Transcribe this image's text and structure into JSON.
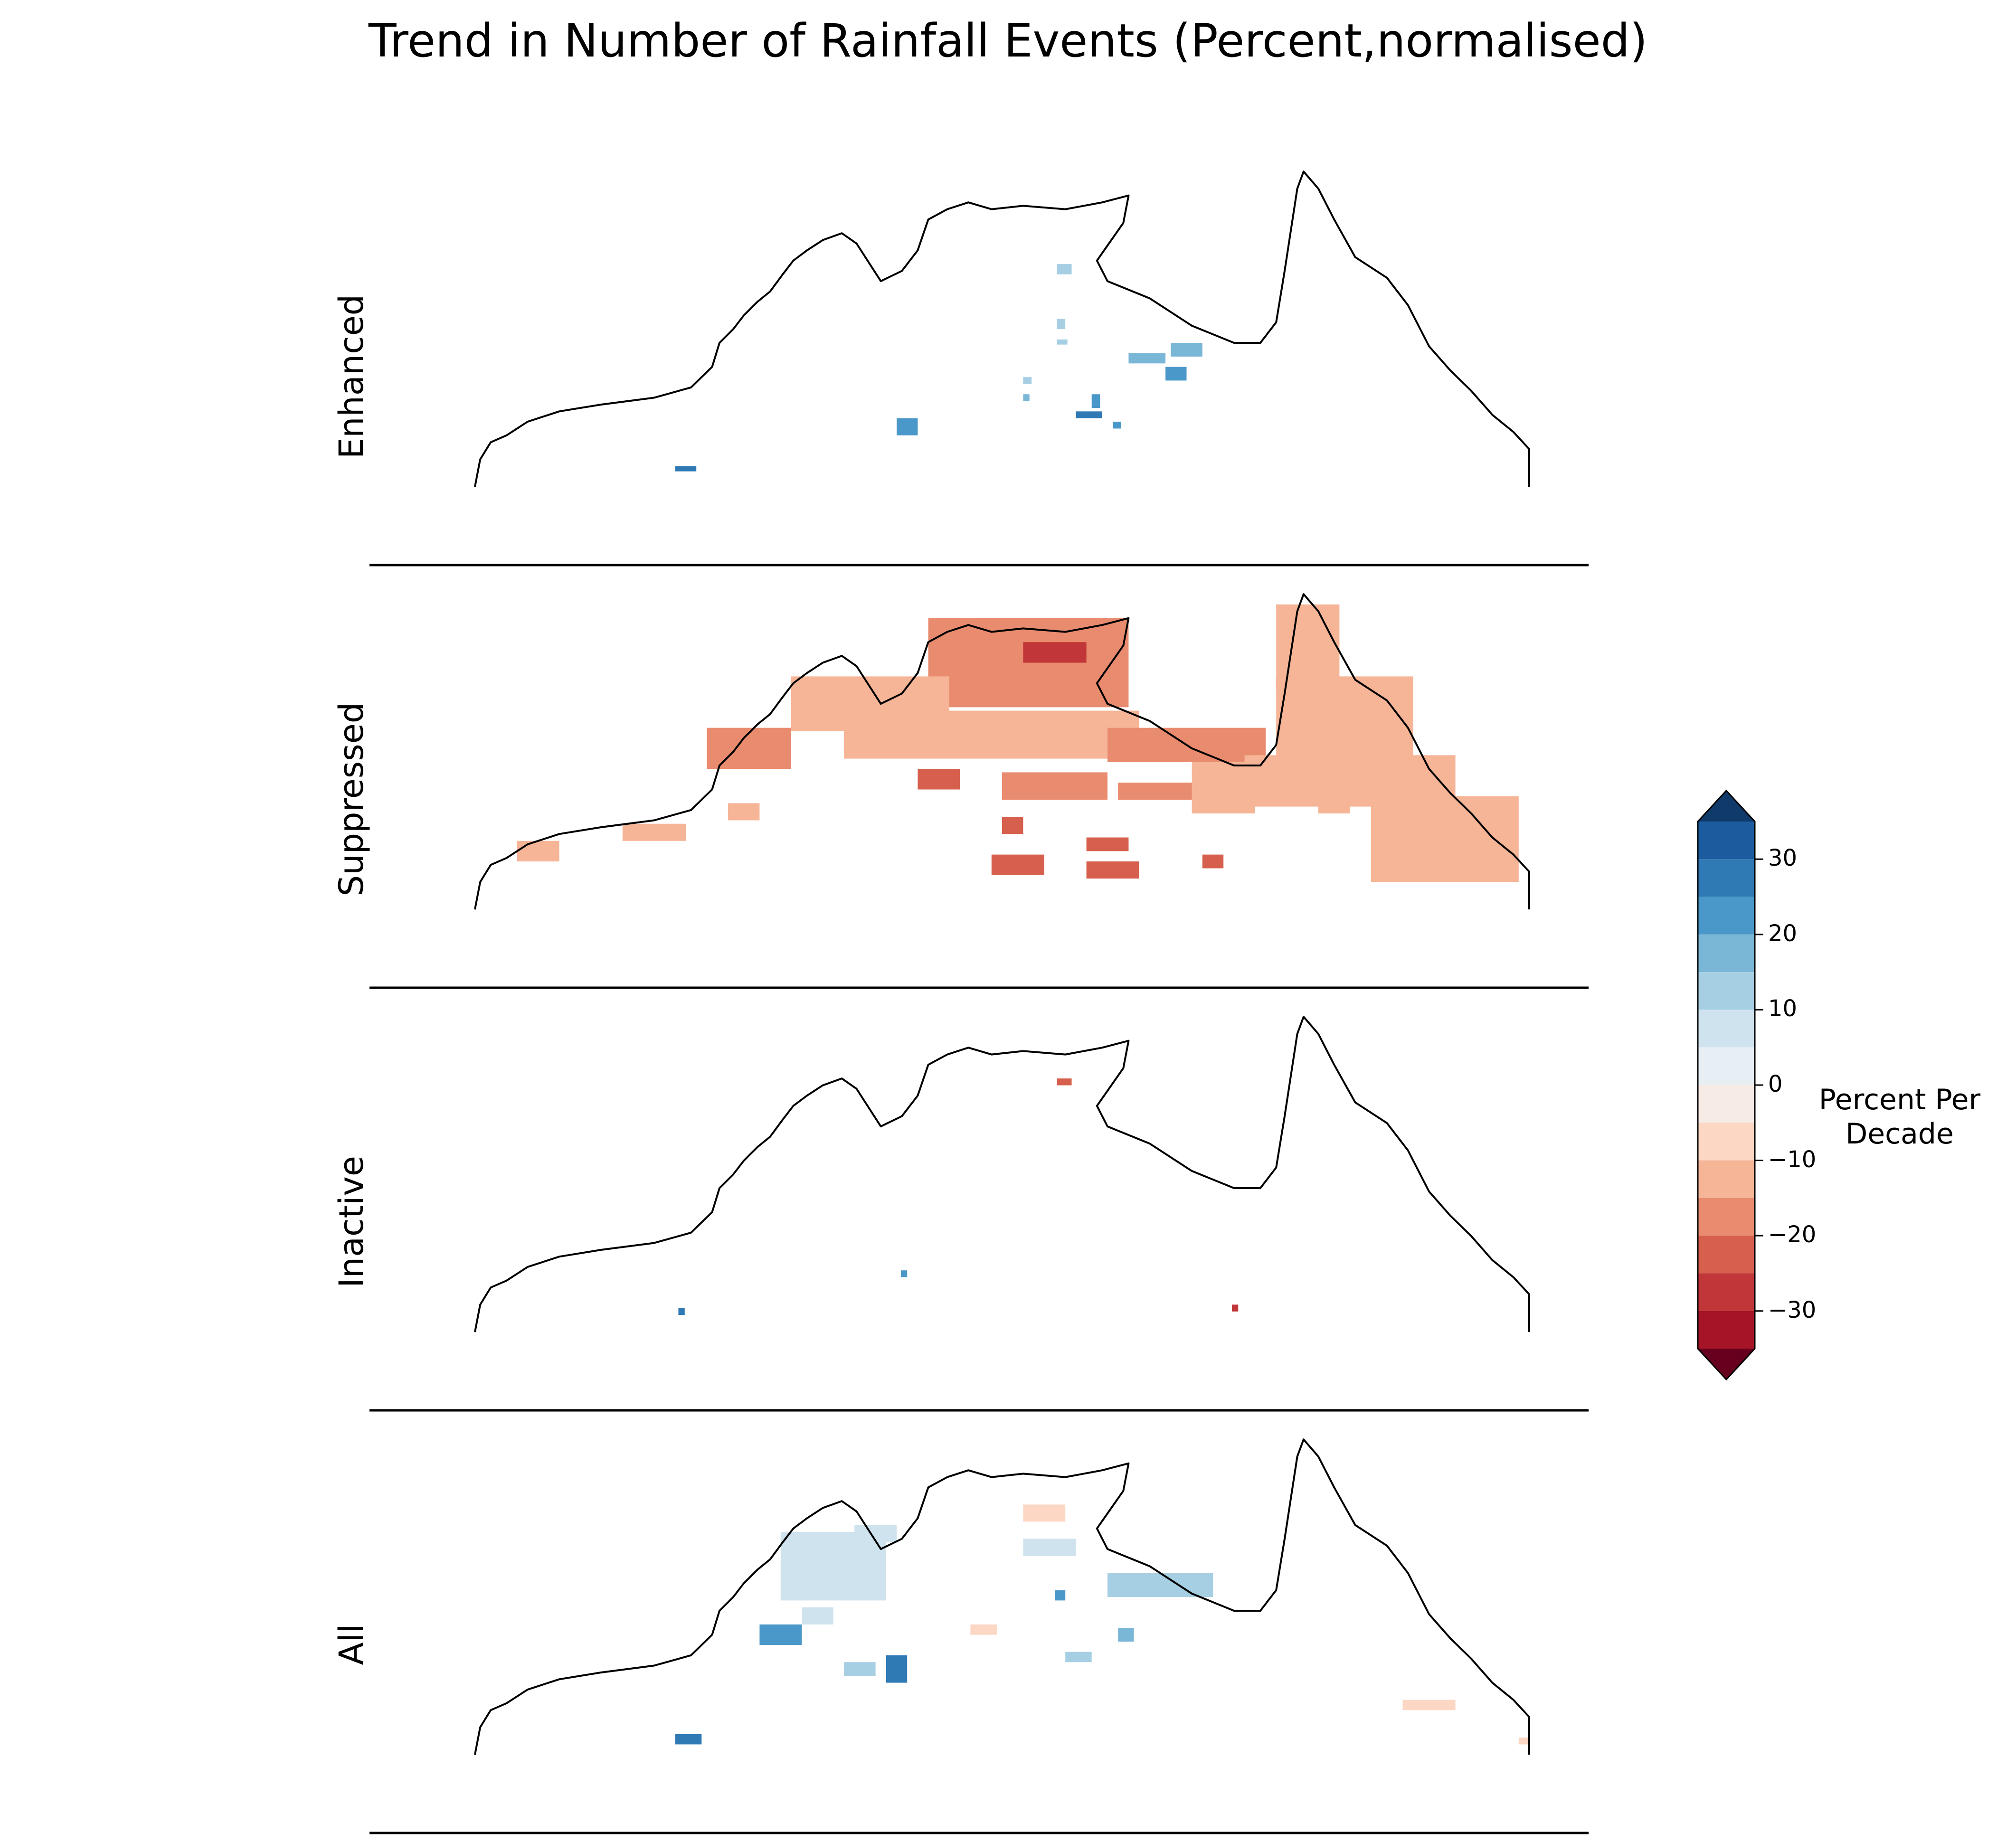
{
  "chart_data": {
    "type": "heatmap",
    "title": "Trend in Number of Rainfall Events (Percent,normalised)",
    "panels": [
      {
        "label": "Enhanced",
        "summary": "Isolated positive trends (blue) at a few grid cells, mainly interior Gulf region and Barkly; otherwise no significant trend."
      },
      {
        "label": "Suppressed",
        "summary": "Widespread negative trends (red) across the northern tropics, strongest (around -30) in the Top End near Arnhem Land; moderate (-10 to -20) across Cape York, Kimberley and inland."
      },
      {
        "label": "Inactive",
        "summary": "Almost no significant trends; a couple of isolated cells."
      },
      {
        "label": "All",
        "summary": "Mostly weak positive trends (light blue, 0 to 20) over the Kimberley, Top End interior and Gulf; scattered weak negative cells in the east."
      }
    ],
    "colorbar": {
      "label": "Percent Per\nDecade",
      "ticks": [
        30,
        20,
        10,
        0,
        -10,
        -20,
        -30
      ],
      "range": [
        -35,
        35
      ],
      "step": 5,
      "extend": "both",
      "colormap": "RdBu",
      "levels": [
        {
          "min": 30,
          "max": 35,
          "color": "#1c5c9e"
        },
        {
          "min": 25,
          "max": 30,
          "color": "#2f79b5"
        },
        {
          "min": 20,
          "max": 25,
          "color": "#4a98c9"
        },
        {
          "min": 15,
          "max": 20,
          "color": "#7ab6d6"
        },
        {
          "min": 10,
          "max": 15,
          "color": "#a7cfe4"
        },
        {
          "min": 5,
          "max": 10,
          "color": "#cfe3ef"
        },
        {
          "min": 0,
          "max": 5,
          "color": "#e8eff4"
        },
        {
          "min": -5,
          "max": 0,
          "color": "#f6ebe5"
        },
        {
          "min": -10,
          "max": -5,
          "color": "#fbd7c4"
        },
        {
          "min": -15,
          "max": -10,
          "color": "#f6b597"
        },
        {
          "min": -20,
          "max": -15,
          "color": "#e98b6e"
        },
        {
          "min": -25,
          "max": -20,
          "color": "#d6604d"
        },
        {
          "min": -30,
          "max": -25,
          "color": "#c13639"
        },
        {
          "min": -35,
          "max": -30,
          "color": "#a51427"
        }
      ],
      "over_color": "#0f3a6a",
      "under_color": "#67001f"
    }
  }
}
